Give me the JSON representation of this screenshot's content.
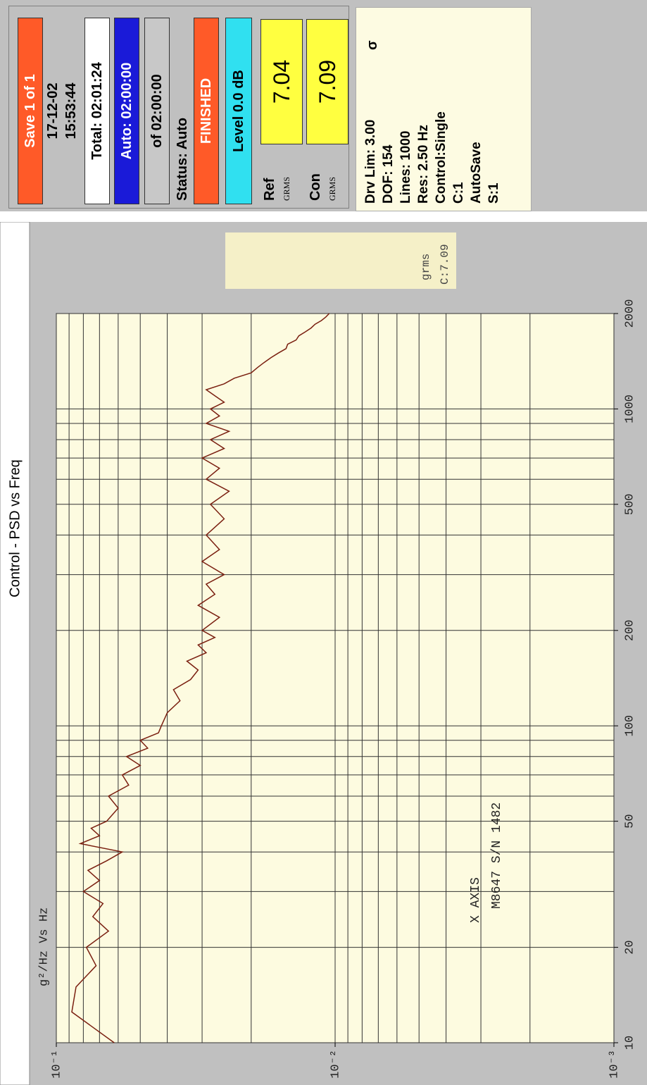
{
  "chart_data": {
    "type": "line",
    "title": "Control - PSD vs Freq",
    "ylabel": "g²/Hz Vs Hz",
    "rms_unit": "grms",
    "rms_value": "C:7.09",
    "annotations": [
      "X AXIS",
      "M8647 S/N 1482"
    ],
    "x": [
      10,
      12.5,
      15,
      17.5,
      20,
      22.5,
      25,
      27.5,
      30,
      32.5,
      35,
      37.5,
      40,
      42.5,
      45,
      47.5,
      50,
      55,
      60,
      65,
      70,
      75,
      80,
      85,
      90,
      95,
      100,
      110,
      120,
      130,
      140,
      150,
      160,
      170,
      180,
      190,
      200,
      220,
      240,
      260,
      280,
      300,
      330,
      360,
      400,
      450,
      500,
      550,
      600,
      650,
      700,
      750,
      800,
      850,
      900,
      950,
      1000,
      1050,
      1100,
      1150,
      1200,
      1250,
      1300,
      1350,
      1400,
      1450,
      1500,
      1550,
      1600,
      1650,
      1700,
      1750,
      1800,
      1850,
      1900,
      1950,
      2000
    ],
    "values": [
      0.062,
      0.088,
      0.085,
      0.072,
      0.078,
      0.065,
      0.074,
      0.068,
      0.08,
      0.07,
      0.077,
      0.066,
      0.058,
      0.082,
      0.07,
      0.075,
      0.066,
      0.06,
      0.065,
      0.055,
      0.058,
      0.05,
      0.056,
      0.047,
      0.05,
      0.043,
      0.042,
      0.04,
      0.036,
      0.038,
      0.033,
      0.031,
      0.034,
      0.029,
      0.031,
      0.027,
      0.03,
      0.026,
      0.031,
      0.027,
      0.029,
      0.025,
      0.03,
      0.026,
      0.029,
      0.025,
      0.028,
      0.024,
      0.029,
      0.026,
      0.03,
      0.025,
      0.028,
      0.024,
      0.029,
      0.026,
      0.028,
      0.025,
      0.027,
      0.029,
      0.025,
      0.023,
      0.02,
      0.019,
      0.018,
      0.017,
      0.016,
      0.015,
      0.0148,
      0.0138,
      0.0135,
      0.0128,
      0.0122,
      0.0118,
      0.0112,
      0.0108,
      0.0105
    ],
    "color": "#7a1f10",
    "xlog": true,
    "ylog": true,
    "xlim": [
      10,
      2000
    ],
    "ylim": [
      0.001,
      0.1
    ],
    "xticks": [
      10,
      20,
      50,
      100,
      200,
      500,
      1000,
      2000
    ],
    "yticks": [
      {
        "value": 0.001,
        "label": "10⁻³"
      },
      {
        "value": 0.01,
        "label": "10⁻²"
      },
      {
        "value": 0.1,
        "label": "10⁻¹"
      }
    ],
    "xgrid": [
      10,
      20,
      30,
      40,
      50,
      60,
      70,
      80,
      90,
      100,
      200,
      300,
      400,
      500,
      600,
      700,
      800,
      900,
      1000,
      2000
    ],
    "ygrid": [
      0.001,
      0.002,
      0.003,
      0.004,
      0.005,
      0.006,
      0.007,
      0.008,
      0.009,
      0.01,
      0.02,
      0.03,
      0.04,
      0.05,
      0.06,
      0.07,
      0.08,
      0.09,
      0.1
    ],
    "grid": true
  },
  "panel": {
    "save": "Save  1 of  1",
    "date": "17-12-02",
    "time": "15:53:44",
    "total": "Total: 02:01:24",
    "auto": "Auto: 02:00:00",
    "of": "of 02:00:00",
    "status": "Status: Auto",
    "state": "FINISHED",
    "level": "Level  0.0 dB",
    "ref": {
      "label": "Ref",
      "unit": "GRMS",
      "value": "7.04"
    },
    "con": {
      "label": "Con",
      "unit": "GRMS",
      "value": "7.09"
    },
    "sigma": "σ",
    "info": [
      "Drv Lim: 3.00",
      "DOF: 154",
      "Lines: 1000",
      "Res: 2.50 Hz",
      "Control:Single",
      "C:1",
      "AutoSave",
      "S:1"
    ]
  }
}
